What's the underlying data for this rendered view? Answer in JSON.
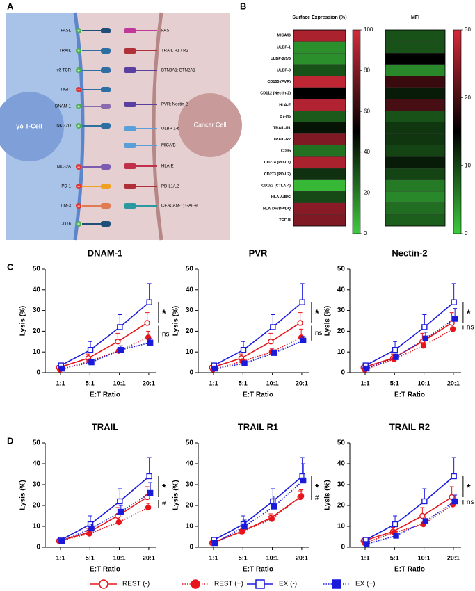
{
  "panel_labels": [
    "A",
    "B",
    "C",
    "D"
  ],
  "diagram": {
    "left_cell": "γδ T-Cell",
    "right_cell": "Cancer Cell",
    "receptors": [
      {
        "label": "FASL",
        "sign": "+"
      },
      {
        "label": "TRAIL",
        "sign": "+"
      },
      {
        "label": "γδ TCR",
        "sign": "+"
      },
      {
        "label": "TIGIT",
        "sign": "−"
      },
      {
        "label": "DNAM-1",
        "sign": "+"
      },
      {
        "label": "NKG2D",
        "sign": "+"
      },
      {
        "label": "NKG2A",
        "sign": "−"
      },
      {
        "label": "PD-1",
        "sign": "−"
      },
      {
        "label": "TIM-3",
        "sign": "−"
      },
      {
        "label": "CD16",
        "sign": "+"
      }
    ],
    "ligands": [
      "FAS",
      "TRAIL R1 / R2",
      "BTN3A1: BTN2A1",
      "PVR; Nectin-2",
      "ULBP 1-6",
      "MICA/B",
      "HLA-E",
      "PD-L1/L2",
      "CEACAM-1; GAL-9"
    ]
  },
  "chart_data": [
    {
      "type": "heatmap",
      "title": "Surface Expression (%)",
      "rows": [
        "MICA/B",
        "ULBP-1",
        "ULBP-2/5/6",
        "ULBP-3",
        "CD155 (PVR)",
        "CD112 (Nectin-2)",
        "HLA-E",
        "B7-H6",
        "TRAIL-R1",
        "TRAIL-R2",
        "CD95",
        "CD274 (PD-L1)",
        "CD273 (PD-L2)",
        "CD152 (CTLA-4)",
        "HLA-A/B/C",
        "HLA-DR/DP/DQ",
        "TGF-B"
      ],
      "values": [
        90,
        15,
        15,
        30,
        95,
        50,
        92,
        28,
        45,
        80,
        22,
        90,
        38,
        5,
        32,
        82,
        80
      ],
      "colors": [
        "#3dcc3d",
        "#000000",
        "#d42a3a"
      ],
      "clim": [
        0,
        100
      ],
      "cticks": [
        0,
        20,
        40,
        60,
        80,
        100
      ]
    },
    {
      "type": "heatmap",
      "title": "MFI",
      "values": [
        9,
        9,
        15,
        5,
        19,
        13,
        20,
        9,
        11,
        11,
        10,
        13,
        10,
        6,
        5,
        7,
        8
      ],
      "colors": [
        "#3dcc3d",
        "#000000",
        "#d42a3a"
      ],
      "clim": [
        0,
        30
      ],
      "cticks": [
        0,
        10,
        20,
        30
      ]
    },
    {
      "type": "line",
      "title": "DNAM-1",
      "x_label": "E:T Ratio",
      "y_label": "Lysis (%)",
      "categories": [
        "1:1",
        "5:1",
        "10:1",
        "20:1"
      ],
      "ylim": [
        0,
        50
      ],
      "yticks": [
        0,
        10,
        20,
        30,
        40,
        50
      ],
      "series": [
        {
          "name": "REST (-)",
          "color": "#e8141b",
          "marker": "circle",
          "filled": false,
          "dotted": false,
          "values": [
            2.5,
            7,
            15,
            24
          ],
          "errors": [
            1,
            2,
            4,
            5
          ]
        },
        {
          "name": "REST (+)",
          "color": "#e8141b",
          "marker": "circle",
          "filled": true,
          "dotted": true,
          "values": [
            1.5,
            5.5,
            10.5,
            17
          ],
          "errors": [
            0.5,
            1,
            1.5,
            3
          ]
        },
        {
          "name": "EX (-)",
          "color": "#1a1adb",
          "marker": "square",
          "filled": false,
          "dotted": false,
          "values": [
            3.5,
            11,
            22,
            34
          ],
          "errors": [
            1,
            4,
            6,
            9
          ]
        },
        {
          "name": "EX (+)",
          "color": "#1a1adb",
          "marker": "square",
          "filled": true,
          "dotted": true,
          "values": [
            2,
            5,
            11,
            14.5
          ],
          "errors": [
            0.5,
            1,
            2,
            2
          ]
        }
      ],
      "annotations": [
        "*",
        "ns"
      ]
    },
    {
      "type": "line",
      "title": "PVR",
      "x_label": "E:T Ratio",
      "y_label": "Lysis (%)",
      "categories": [
        "1:1",
        "5:1",
        "10:1",
        "20:1"
      ],
      "ylim": [
        0,
        50
      ],
      "yticks": [
        0,
        10,
        20,
        30,
        40,
        50
      ],
      "series": [
        {
          "name": "REST (-)",
          "color": "#e8141b",
          "marker": "circle",
          "filled": false,
          "dotted": false,
          "values": [
            2.5,
            7,
            15,
            24
          ],
          "errors": [
            1,
            2,
            4,
            5
          ]
        },
        {
          "name": "REST (+)",
          "color": "#e8141b",
          "marker": "circle",
          "filled": true,
          "dotted": true,
          "values": [
            1.5,
            5.5,
            10,
            17
          ],
          "errors": [
            0.5,
            1,
            1.5,
            4
          ]
        },
        {
          "name": "EX (-)",
          "color": "#1a1adb",
          "marker": "square",
          "filled": false,
          "dotted": false,
          "values": [
            3.5,
            11,
            22,
            34
          ],
          "errors": [
            1,
            4,
            6,
            9
          ]
        },
        {
          "name": "EX (+)",
          "color": "#1a1adb",
          "marker": "square",
          "filled": true,
          "dotted": true,
          "values": [
            2,
            4.5,
            9.5,
            15.5
          ],
          "errors": [
            0.5,
            1,
            1.5,
            2
          ]
        }
      ],
      "annotations": [
        "*",
        "ns"
      ]
    },
    {
      "type": "line",
      "title": "Nectin-2",
      "x_label": "E:T Ratio",
      "y_label": "Lysis (%)",
      "categories": [
        "1:1",
        "5:1",
        "10:1",
        "20:1"
      ],
      "ylim": [
        0,
        50
      ],
      "yticks": [
        0,
        10,
        20,
        30,
        40,
        50
      ],
      "series": [
        {
          "name": "REST (-)",
          "color": "#e8141b",
          "marker": "circle",
          "filled": false,
          "dotted": false,
          "values": [
            2.5,
            7,
            15,
            24
          ],
          "errors": [
            1,
            2,
            4,
            5
          ]
        },
        {
          "name": "REST (+)",
          "color": "#e8141b",
          "marker": "circle",
          "filled": true,
          "dotted": true,
          "values": [
            1.5,
            6.5,
            13,
            21
          ],
          "errors": [
            0.5,
            1,
            1.5,
            2
          ]
        },
        {
          "name": "EX (-)",
          "color": "#1a1adb",
          "marker": "square",
          "filled": false,
          "dotted": false,
          "values": [
            3.5,
            11,
            22,
            34
          ],
          "errors": [
            1,
            4,
            6,
            9
          ]
        },
        {
          "name": "EX (+)",
          "color": "#1a1adb",
          "marker": "square",
          "filled": true,
          "dotted": true,
          "values": [
            2,
            7.5,
            16.5,
            26
          ],
          "errors": [
            0.5,
            1.5,
            3,
            5
          ]
        }
      ],
      "annotations": [
        "*",
        "ns"
      ]
    },
    {
      "type": "line",
      "title": "TRAIL",
      "x_label": "E:T Ratio",
      "y_label": "Lysis (%)",
      "categories": [
        "1:1",
        "5:1",
        "10:1",
        "20:1"
      ],
      "ylim": [
        0,
        50
      ],
      "yticks": [
        0,
        10,
        20,
        30,
        40,
        50
      ],
      "series": [
        {
          "name": "REST (-)",
          "color": "#e8141b",
          "marker": "circle",
          "filled": false,
          "dotted": false,
          "values": [
            3,
            7,
            15,
            24
          ],
          "errors": [
            1,
            2,
            4,
            5
          ]
        },
        {
          "name": "REST (+)",
          "color": "#e8141b",
          "marker": "circle",
          "filled": true,
          "dotted": true,
          "values": [
            3,
            6.5,
            12,
            19
          ],
          "errors": [
            0.5,
            1,
            1.5,
            2
          ]
        },
        {
          "name": "EX (-)",
          "color": "#1a1adb",
          "marker": "square",
          "filled": false,
          "dotted": false,
          "values": [
            3.5,
            11,
            22,
            34
          ],
          "errors": [
            1,
            4,
            6,
            9
          ]
        },
        {
          "name": "EX (+)",
          "color": "#1a1adb",
          "marker": "square",
          "filled": true,
          "dotted": true,
          "values": [
            3,
            9,
            17,
            26
          ],
          "errors": [
            0.5,
            2,
            3,
            5
          ]
        }
      ],
      "annotations": [
        "*",
        "#"
      ]
    },
    {
      "type": "line",
      "title": "TRAIL R1",
      "x_label": "E:T Ratio",
      "y_label": "Lysis (%)",
      "categories": [
        "1:1",
        "5:1",
        "10:1",
        "20:1"
      ],
      "ylim": [
        0,
        50
      ],
      "yticks": [
        0,
        10,
        20,
        30,
        40,
        50
      ],
      "series": [
        {
          "name": "REST (-)",
          "color": "#e8141b",
          "marker": "circle",
          "filled": false,
          "dotted": false,
          "values": [
            2,
            7.5,
            14,
            24
          ],
          "errors": [
            0.5,
            1,
            2,
            3
          ]
        },
        {
          "name": "REST (+)",
          "color": "#e8141b",
          "marker": "circle",
          "filled": true,
          "dotted": true,
          "values": [
            2,
            7.5,
            13.5,
            24.5
          ],
          "errors": [
            0.5,
            1,
            2,
            3
          ]
        },
        {
          "name": "EX (-)",
          "color": "#1a1adb",
          "marker": "square",
          "filled": false,
          "dotted": false,
          "values": [
            3.5,
            11,
            22,
            34
          ],
          "errors": [
            1,
            4,
            6,
            9
          ]
        },
        {
          "name": "EX (+)",
          "color": "#1a1adb",
          "marker": "square",
          "filled": true,
          "dotted": true,
          "values": [
            2,
            10,
            19.5,
            32
          ],
          "errors": [
            0.5,
            3,
            5,
            8
          ]
        }
      ],
      "annotations": [
        "*",
        "#"
      ]
    },
    {
      "type": "line",
      "title": "TRAIL R2",
      "x_label": "E:T Ratio",
      "y_label": "Lysis (%)",
      "categories": [
        "1:1",
        "5:1",
        "10:1",
        "20:1"
      ],
      "ylim": [
        0,
        50
      ],
      "yticks": [
        0,
        10,
        20,
        30,
        40,
        50
      ],
      "series": [
        {
          "name": "REST (-)",
          "color": "#e8141b",
          "marker": "circle",
          "filled": false,
          "dotted": false,
          "values": [
            3,
            7.5,
            15,
            24
          ],
          "errors": [
            1,
            2,
            4,
            5
          ]
        },
        {
          "name": "REST (+)",
          "color": "#e8141b",
          "marker": "circle",
          "filled": true,
          "dotted": true,
          "values": [
            2,
            7,
            11,
            20.5
          ],
          "errors": [
            0.5,
            1,
            1.5,
            2
          ]
        },
        {
          "name": "EX (-)",
          "color": "#1a1adb",
          "marker": "square",
          "filled": false,
          "dotted": false,
          "values": [
            3.5,
            11,
            22,
            34
          ],
          "errors": [
            1,
            4,
            6,
            9
          ]
        },
        {
          "name": "EX (+)",
          "color": "#1a1adb",
          "marker": "square",
          "filled": true,
          "dotted": true,
          "values": [
            1.5,
            5.5,
            12.5,
            22
          ],
          "errors": [
            0.5,
            1,
            2,
            3
          ]
        }
      ],
      "annotations": [
        "*",
        "ns"
      ]
    }
  ]
}
